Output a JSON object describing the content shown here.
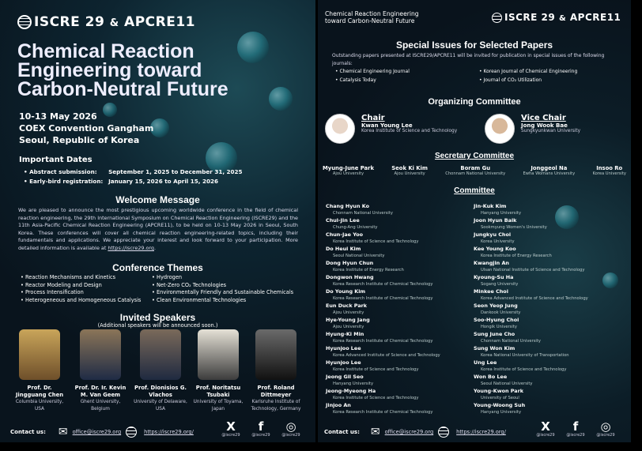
{
  "left": {
    "logo": {
      "text_a": "ISCRE",
      "num_a": "29",
      "amp": "&",
      "text_b": "APCRE",
      "num_b": "11"
    },
    "title": "Chemical Reaction Engineering toward Carbon-Neutral Future",
    "dates": "10-13 May 2026",
    "venue": "COEX Convention Gangham",
    "city": "Seoul, Republic of Korea",
    "important_dates": {
      "heading": "Important Dates",
      "items": [
        {
          "label": "Abstract submission:",
          "value": "September 1, 2025 to December 31, 2025"
        },
        {
          "label": "Early-bird registration:",
          "value": "January 15, 2026 to April 15, 2026"
        }
      ]
    },
    "welcome": {
      "heading": "Welcome Message",
      "body": "We are pleased to announce the most prestigious upcoming worldwide conference in the field of chemical reaction engineering, the 29th International Symposium on Chemical Reaction Engineering (ISCRE29) and the 11th Asia-Pacific Chemical Reaction Engineering (APCRE11), to be held on 10-13 May 2026 in Seoul, South Korea. These conferences will cover all chemical reaction engineering-related topics, including their fundamentals and applications. We appreciate your interest and look forward to your participation. More detailed information is available at ",
      "link": "https://iscre29.org",
      "end": "."
    },
    "themes": {
      "heading": "Conference Themes",
      "col1": [
        "Reaction Mechanisms and Kinetics",
        "Reactor Modeling and Design",
        "Process Intensification",
        "Heterogeneous and Homogeneous Catalysis"
      ],
      "col2": [
        "Hydrogen",
        "Net-Zero CO₂ Technologies",
        "Environmentally Friendly and Sustainable Chemicals",
        "Clean Environmental Technologies"
      ]
    },
    "speakers": {
      "heading": "Invited Speakers",
      "sub": "(Additional speakers will be announced soon.)",
      "items": [
        {
          "name": "Prof. Dr. Jingguang Chen",
          "aff": "Columbia University, USA"
        },
        {
          "name": "Prof. Dr. Ir. Kevin M. Van Geem",
          "aff": "Ghent University, Belgium"
        },
        {
          "name": "Prof. Dionisios G. Vlachos",
          "aff": "University of Delaware, USA"
        },
        {
          "name": "Prof. Noritatsu Tsubaki",
          "aff": "University of Toyama, Japan"
        },
        {
          "name": "Prof. Roland Dittmeyer",
          "aff": "Karlsruhe Institute of Technology, Germany"
        }
      ]
    }
  },
  "contact": {
    "label": "Contact us:",
    "email": "office@iscre29.org",
    "website": "https://iscre29.org/",
    "social": [
      {
        "icon": "x-icon",
        "glyph": "X",
        "handle": "@iscre29"
      },
      {
        "icon": "facebook-icon",
        "glyph": "f",
        "handle": "@iscre29"
      },
      {
        "icon": "instagram-icon",
        "glyph": "◎",
        "handle": "@iscre29"
      }
    ]
  },
  "right": {
    "tagline_1": "Chemical Reaction Engineering",
    "tagline_2": "toward Carbon-Neutral Future",
    "special": {
      "heading": "Special Issues for Selected Papers",
      "intro": "Outstanding papers presented at ISCRE29/APCRE11 will be invited for publication in special issues of the following journals:",
      "col1": [
        "Chemical Engineering Journal",
        "Catalysis Today"
      ],
      "col2": [
        "Korean Journal of Chemical Engineering",
        "Journal of CO₂ Utilization"
      ]
    },
    "organizing": {
      "heading": "Organizing Committee",
      "chair": {
        "role": "Chair",
        "name": "Kwan Young Lee",
        "aff": "Korea Institute of Science and Technology"
      },
      "vice": {
        "role": "Vice Chair",
        "name": "Jong Wook Bae",
        "aff": "Sungkyunkwan University"
      }
    },
    "secretary": {
      "heading": "Secretary Committee",
      "items": [
        {
          "name": "Myung-June Park",
          "aff": "Ajou University"
        },
        {
          "name": "Seok Ki Kim",
          "aff": "Ajou University"
        },
        {
          "name": "Boram Gu",
          "aff": "Chonnam National University"
        },
        {
          "name": "Jonggeol Na",
          "aff": "Ewha Womans University"
        },
        {
          "name": "Insoo Ro",
          "aff": "Korea University"
        }
      ]
    },
    "committee": {
      "heading": "Committee",
      "col1": [
        {
          "name": "Chang Hyun Ko",
          "aff": "Chonnam National University"
        },
        {
          "name": "Chul-Jin Lee",
          "aff": "Chung-Ang University"
        },
        {
          "name": "Chun-Jae Yoo",
          "aff": "Korea Institute of Science and Technology"
        },
        {
          "name": "Do Heui Kim",
          "aff": "Seoul National University"
        },
        {
          "name": "Dong Hyun Chun",
          "aff": "Korea Institute of Energy Research"
        },
        {
          "name": "Dongwon Hwang",
          "aff": "Korea Research Institute of Chemical Technology"
        },
        {
          "name": "Do Young Kim",
          "aff": "Korea Research Institute of Chemical Technology"
        },
        {
          "name": "Eun Duck Park",
          "aff": "Ajou University"
        },
        {
          "name": "Hye-Young Jang",
          "aff": "Ajou University"
        },
        {
          "name": "Hyung-Ki Min",
          "aff": "Korea Research Institute of Chemical Technology"
        },
        {
          "name": "Hyunjoo Lee",
          "aff": "Korea Advanced Institute of Science and Technology"
        },
        {
          "name": "Hyunjoo Lee",
          "aff": "Korea Institute of Science and Technology"
        },
        {
          "name": "Jeong Gil Seo",
          "aff": "Hanyang University"
        },
        {
          "name": "Jeong-Myeong Ha",
          "aff": "Korea Institute of Science and Technology"
        },
        {
          "name": "Jinjoo An",
          "aff": "Korea Research Institute of Chemical Technology"
        }
      ],
      "col2": [
        {
          "name": "Jin-Kuk Kim",
          "aff": "Hanyang University"
        },
        {
          "name": "Joon Hyun Baik",
          "aff": "Sookmyung Women's University"
        },
        {
          "name": "Jungkyu Choi",
          "aff": "Korea University"
        },
        {
          "name": "Kee Young Koo",
          "aff": "Korea Institute of Energy Research"
        },
        {
          "name": "Kwangjin An",
          "aff": "Ulsan National Institute of Science and Technology"
        },
        {
          "name": "Kyoung-Su Ha",
          "aff": "Sogang University"
        },
        {
          "name": "Minkee Choi",
          "aff": "Korea Advanced Institute of Science and Technology"
        },
        {
          "name": "Seon Yeop Jung",
          "aff": "Dankook University"
        },
        {
          "name": "Soo-Hyung Choi",
          "aff": "Hongik University"
        },
        {
          "name": "Sung June Cho",
          "aff": "Chonnam National University"
        },
        {
          "name": "Sung Won Kim",
          "aff": "Korea National University of Transportation"
        },
        {
          "name": "Ung Lee",
          "aff": "Korea Institute of Science and Technology"
        },
        {
          "name": "Won Bo Lee",
          "aff": "Seoul National University"
        },
        {
          "name": "Young-Kwon Park",
          "aff": "University of Seoul"
        },
        {
          "name": "Young-Woong Suh",
          "aff": "Hanyang University"
        }
      ]
    }
  }
}
